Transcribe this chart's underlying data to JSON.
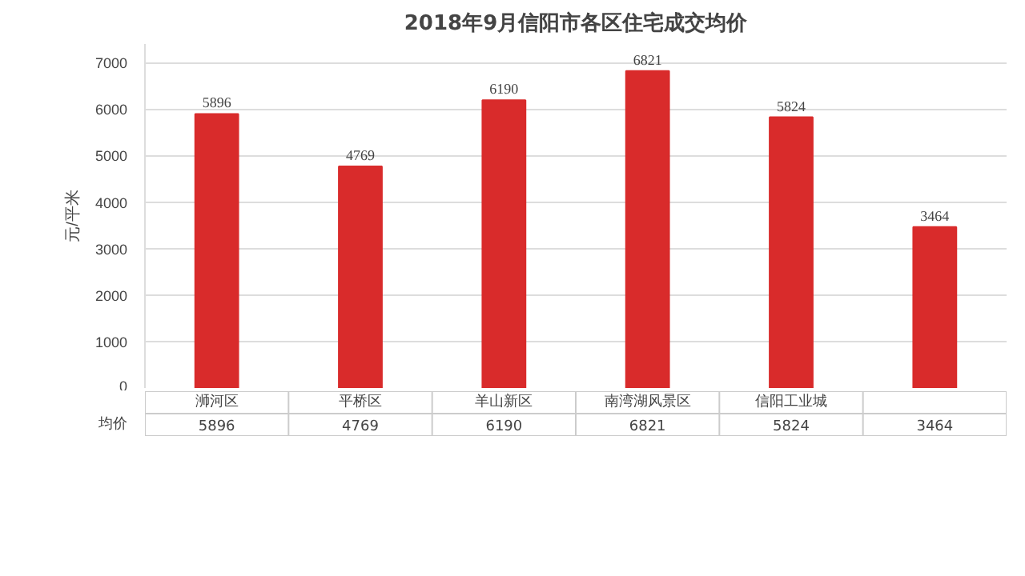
{
  "chart_data": {
    "type": "bar",
    "title": "2018年9月信阳市各区住宅成交均价",
    "ylabel": "元/平米",
    "categories": [
      "浉河区",
      "平桥区",
      "羊山新区",
      "南湾湖风景区",
      "信阳工业城",
      null
    ],
    "series": [
      {
        "name": "均价",
        "color": "#d92b2b",
        "values": [
          5896,
          4769,
          6190,
          6821,
          5824,
          3464
        ],
        "value_labels": [
          "5896",
          "4769",
          "6190",
          "6821",
          "5824",
          "3464"
        ]
      }
    ],
    "ylim": [
      0,
      7400
    ],
    "yticks": [
      0,
      1000,
      2000,
      3000,
      4000,
      5000,
      6000,
      7000
    ],
    "grid": "y",
    "legend": "bottom left"
  }
}
